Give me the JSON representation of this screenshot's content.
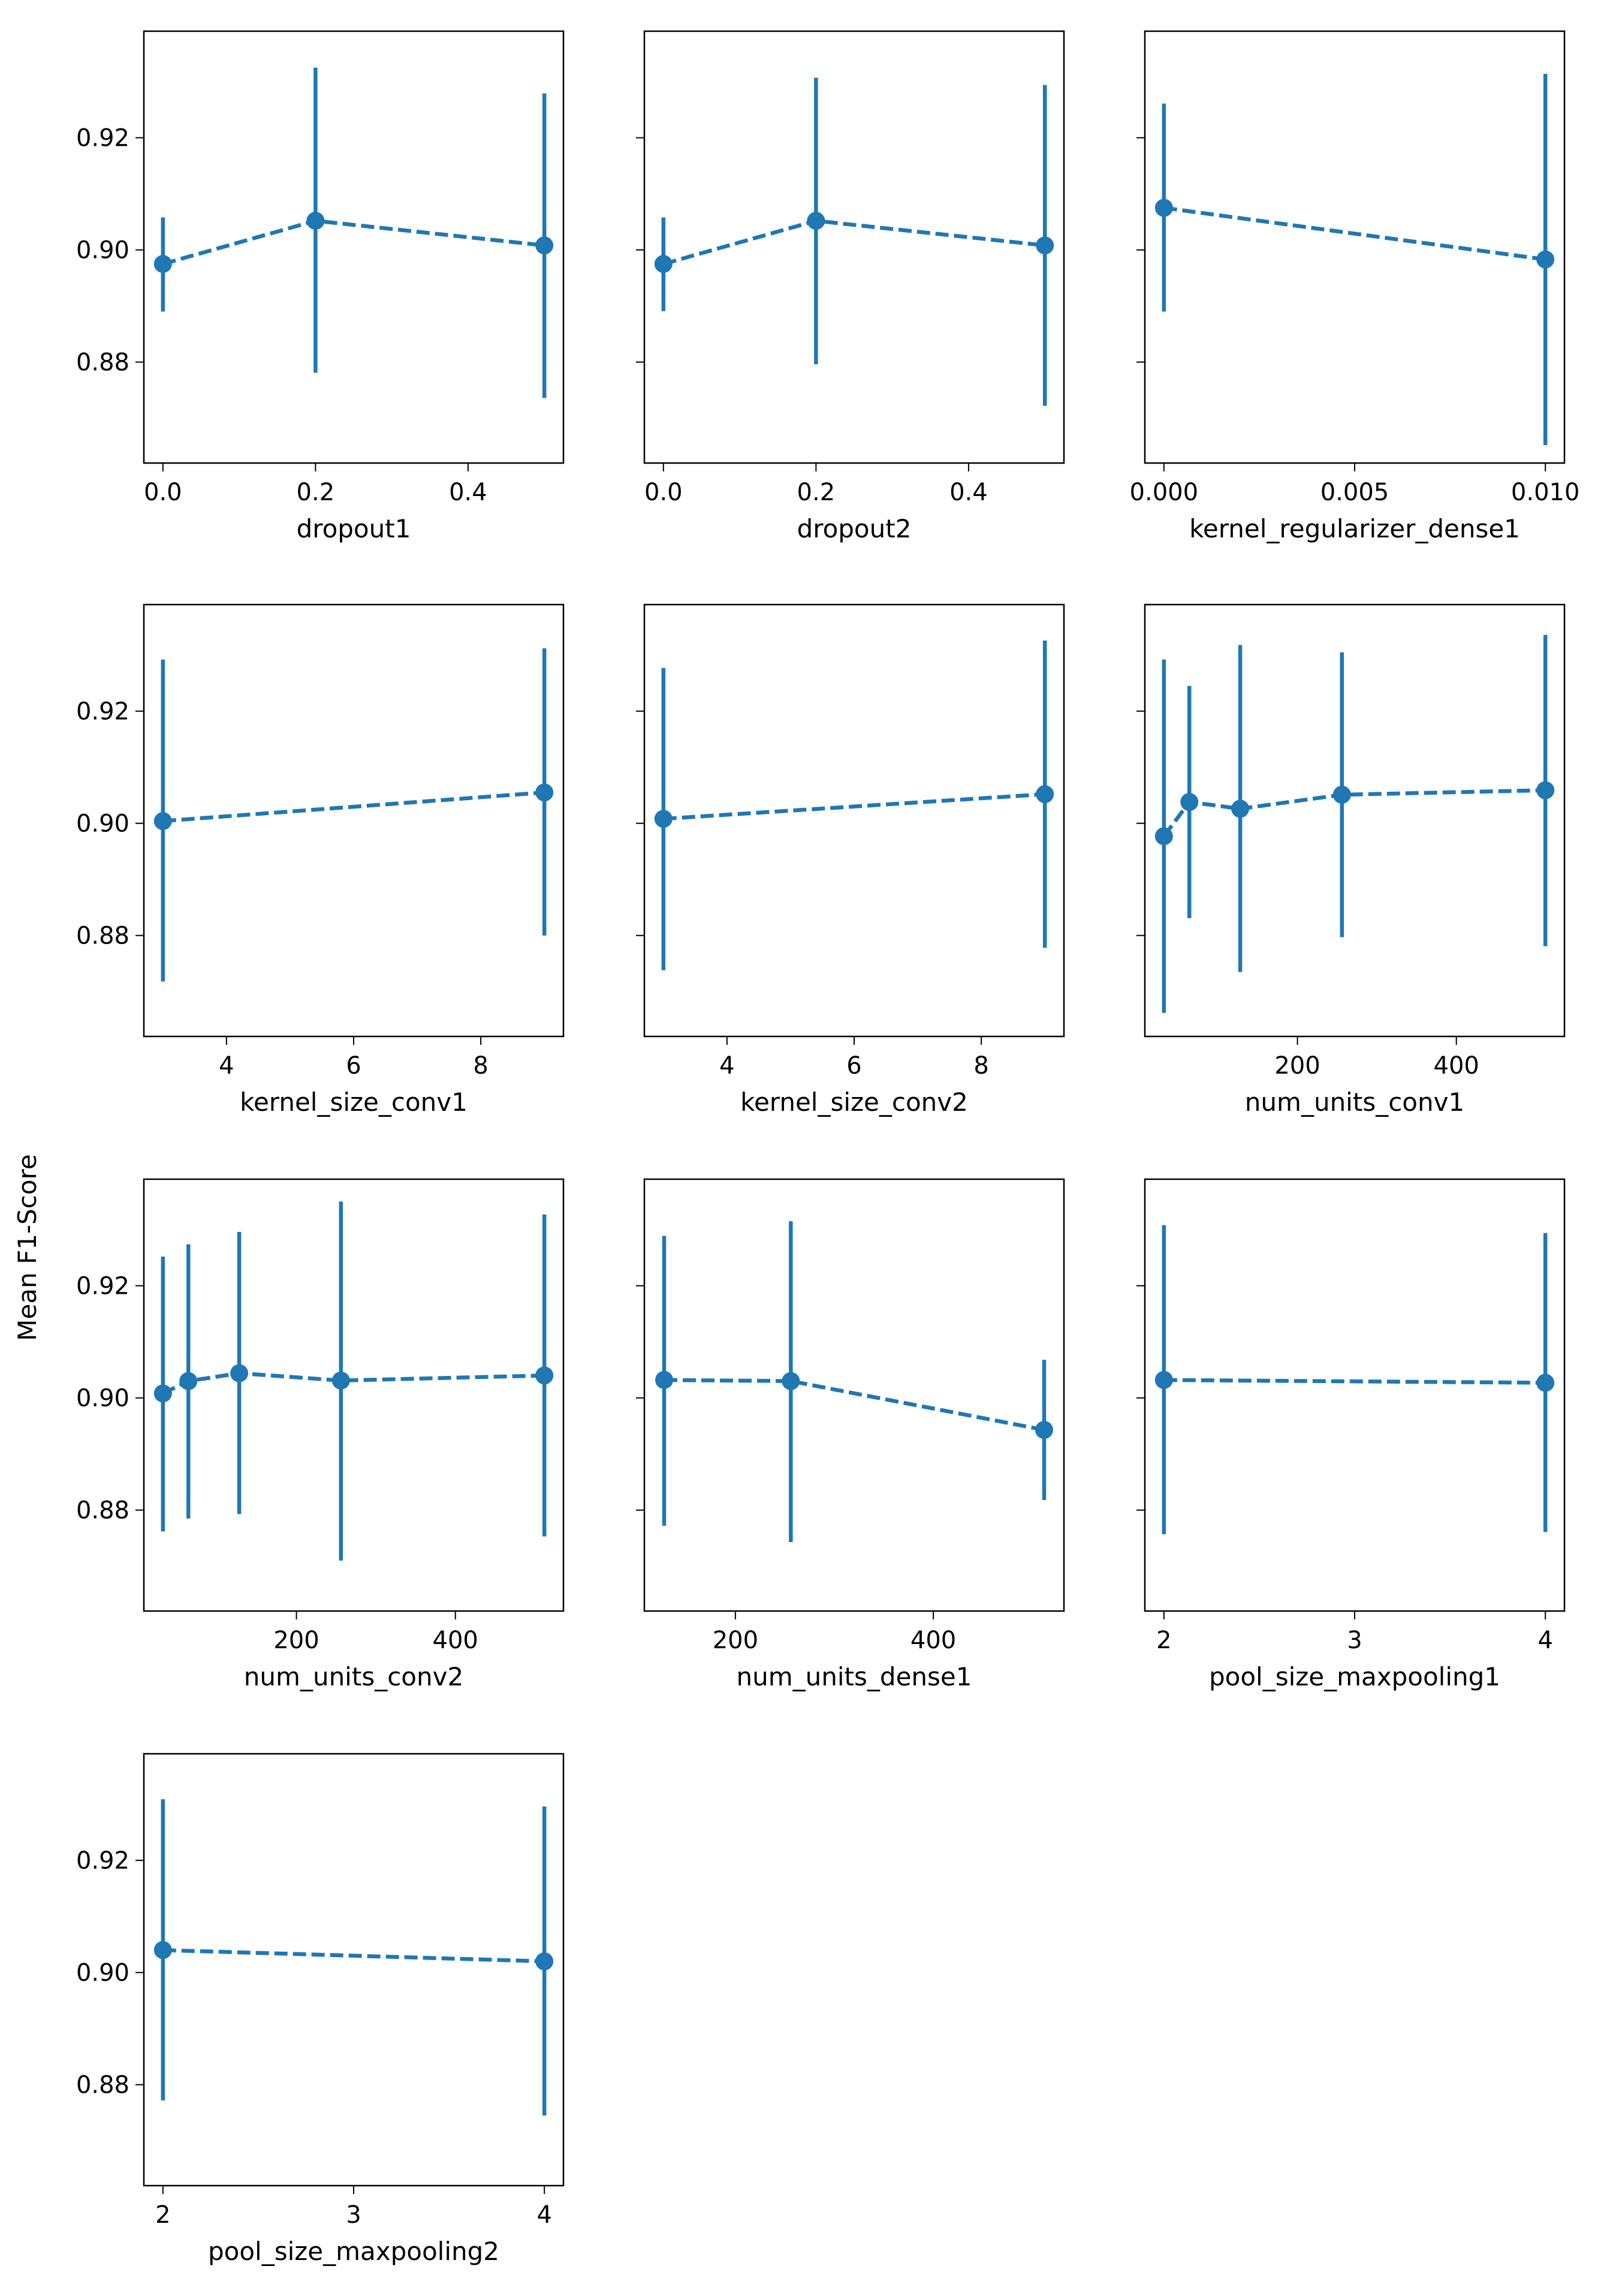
{
  "figure": {
    "shared_ylabel": "Mean F1-Score",
    "colors": {
      "series": "#1f77b4",
      "axes": "#000000",
      "background": "#ffffff"
    },
    "ylim": [
      0.862,
      0.939
    ],
    "yticks": [
      {
        "value": 0.88,
        "label": "0.88"
      },
      {
        "value": 0.9,
        "label": "0.90"
      },
      {
        "value": 0.92,
        "label": "0.92"
      }
    ]
  },
  "chart_data": [
    {
      "type": "line",
      "xlabel": "dropout1",
      "xlim": [
        -0.025,
        0.525
      ],
      "xticks": [
        {
          "value": 0,
          "label": "0.0"
        },
        {
          "value": 0.2,
          "label": "0.2"
        },
        {
          "value": 0.4,
          "label": "0.4"
        }
      ],
      "points": [
        {
          "x": 0.0,
          "y": 0.8975,
          "err_low": 0.889,
          "err_high": 0.9058
        },
        {
          "x": 0.2,
          "y": 0.9052,
          "err_low": 0.8781,
          "err_high": 0.9325
        },
        {
          "x": 0.5,
          "y": 0.9008,
          "err_low": 0.8736,
          "err_high": 0.9279
        }
      ]
    },
    {
      "type": "line",
      "xlabel": "dropout2",
      "xlim": [
        -0.025,
        0.525
      ],
      "xticks": [
        {
          "value": 0,
          "label": "0.0"
        },
        {
          "value": 0.2,
          "label": "0.2"
        },
        {
          "value": 0.4,
          "label": "0.4"
        }
      ],
      "points": [
        {
          "x": 0.0,
          "y": 0.8975,
          "err_low": 0.8891,
          "err_high": 0.9058
        },
        {
          "x": 0.2,
          "y": 0.9052,
          "err_low": 0.8796,
          "err_high": 0.9307
        },
        {
          "x": 0.5,
          "y": 0.9008,
          "err_low": 0.8722,
          "err_high": 0.9294
        }
      ]
    },
    {
      "type": "line",
      "xlabel": "kernel_regularizer_dense1",
      "xlim": [
        -0.0005,
        0.0105
      ],
      "xticks": [
        {
          "value": 0,
          "label": "0.000"
        },
        {
          "value": 0.005,
          "label": "0.005"
        },
        {
          "value": 0.01,
          "label": "0.010"
        }
      ],
      "points": [
        {
          "x": 0.0,
          "y": 0.9075,
          "err_low": 0.889,
          "err_high": 0.9261
        },
        {
          "x": 0.01,
          "y": 0.8983,
          "err_low": 0.8652,
          "err_high": 0.9314
        }
      ]
    },
    {
      "type": "line",
      "xlabel": "kernel_size_conv1",
      "xlim": [
        2.7,
        9.3
      ],
      "xticks": [
        {
          "value": 4,
          "label": "4"
        },
        {
          "value": 6,
          "label": "6"
        },
        {
          "value": 8,
          "label": "8"
        }
      ],
      "points": [
        {
          "x": 3,
          "y": 0.9004,
          "err_low": 0.8718,
          "err_high": 0.9292
        },
        {
          "x": 9,
          "y": 0.9055,
          "err_low": 0.88,
          "err_high": 0.9312
        }
      ]
    },
    {
      "type": "line",
      "xlabel": "kernel_size_conv2",
      "xlim": [
        2.7,
        9.3
      ],
      "xticks": [
        {
          "value": 4,
          "label": "4"
        },
        {
          "value": 6,
          "label": "6"
        },
        {
          "value": 8,
          "label": "8"
        }
      ],
      "points": [
        {
          "x": 3,
          "y": 0.9008,
          "err_low": 0.8738,
          "err_high": 0.9277
        },
        {
          "x": 9,
          "y": 0.9052,
          "err_low": 0.8778,
          "err_high": 0.9326
        }
      ]
    },
    {
      "type": "line",
      "xlabel": "num_units_conv1",
      "xlim": [
        8,
        536
      ],
      "xticks": [
        {
          "value": 200,
          "label": "200"
        },
        {
          "value": 400,
          "label": "400"
        }
      ],
      "points": [
        {
          "x": 32,
          "y": 0.8977,
          "err_low": 0.8662,
          "err_high": 0.9292
        },
        {
          "x": 64,
          "y": 0.9038,
          "err_low": 0.8831,
          "err_high": 0.9245
        },
        {
          "x": 128,
          "y": 0.9026,
          "err_low": 0.8735,
          "err_high": 0.9318
        },
        {
          "x": 256,
          "y": 0.9051,
          "err_low": 0.8797,
          "err_high": 0.9305
        },
        {
          "x": 512,
          "y": 0.9059,
          "err_low": 0.8781,
          "err_high": 0.9336
        }
      ]
    },
    {
      "type": "line",
      "xlabel": "num_units_conv2",
      "xlim": [
        8,
        536
      ],
      "xticks": [
        {
          "value": 200,
          "label": "200"
        },
        {
          "value": 400,
          "label": "400"
        }
      ],
      "points": [
        {
          "x": 32,
          "y": 0.9008,
          "err_low": 0.8762,
          "err_high": 0.9252
        },
        {
          "x": 64,
          "y": 0.903,
          "err_low": 0.8785,
          "err_high": 0.9274
        },
        {
          "x": 128,
          "y": 0.9044,
          "err_low": 0.8793,
          "err_high": 0.9296
        },
        {
          "x": 256,
          "y": 0.9031,
          "err_low": 0.871,
          "err_high": 0.935
        },
        {
          "x": 512,
          "y": 0.904,
          "err_low": 0.8753,
          "err_high": 0.9327
        }
      ]
    },
    {
      "type": "line",
      "xlabel": "num_units_dense1",
      "xlim": [
        108,
        532
      ],
      "xticks": [
        {
          "value": 200,
          "label": "200"
        },
        {
          "value": 400,
          "label": "400"
        }
      ],
      "points": [
        {
          "x": 128,
          "y": 0.9032,
          "err_low": 0.8772,
          "err_high": 0.9289
        },
        {
          "x": 256,
          "y": 0.903,
          "err_low": 0.8743,
          "err_high": 0.9315
        },
        {
          "x": 512,
          "y": 0.8943,
          "err_low": 0.8818,
          "err_high": 0.9068
        }
      ]
    },
    {
      "type": "line",
      "xlabel": "pool_size_maxpooling1",
      "xlim": [
        1.9,
        4.1
      ],
      "xticks": [
        {
          "value": 2,
          "label": "2"
        },
        {
          "value": 3,
          "label": "3"
        },
        {
          "value": 4,
          "label": "4"
        }
      ],
      "points": [
        {
          "x": 2,
          "y": 0.9032,
          "err_low": 0.8757,
          "err_high": 0.9308
        },
        {
          "x": 4,
          "y": 0.9027,
          "err_low": 0.8761,
          "err_high": 0.9294
        }
      ]
    },
    {
      "type": "line",
      "xlabel": "pool_size_maxpooling2",
      "xlim": [
        1.9,
        4.1
      ],
      "xticks": [
        {
          "value": 2,
          "label": "2"
        },
        {
          "value": 3,
          "label": "3"
        },
        {
          "value": 4,
          "label": "4"
        }
      ],
      "points": [
        {
          "x": 2,
          "y": 0.904,
          "err_low": 0.8772,
          "err_high": 0.9309
        },
        {
          "x": 4,
          "y": 0.902,
          "err_low": 0.8745,
          "err_high": 0.9296
        }
      ]
    }
  ]
}
